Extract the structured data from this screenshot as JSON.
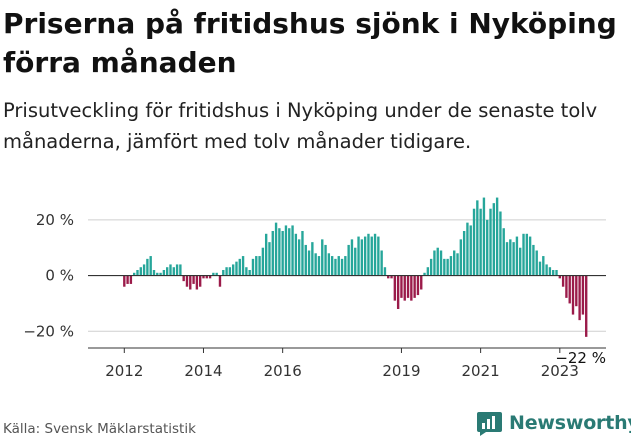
{
  "title": "Priserna på fritidshus sjönk i Nyköping förra månaden",
  "subtitle": "Prisutveckling för fritidshus i Nyköping under de senaste tolv månaderna, jämfört med tolv månader tidigare.",
  "source": "Källa: Svensk Mäklarstatistik",
  "brand": {
    "name": "Newsworthy",
    "icon": "newsworthy-logo-icon"
  },
  "colors": {
    "positive": "#26a69a",
    "negative": "#9b1b4a",
    "axis": "#333333",
    "grid": "#cfcfcf"
  },
  "chart_data": {
    "type": "bar",
    "title": "",
    "xlabel": "",
    "ylabel": "",
    "y_unit": "%",
    "ylim": [
      -26,
      30
    ],
    "xlim": [
      "2011-02",
      "2024-03"
    ],
    "grid": true,
    "legend": "none",
    "y_ticks": [
      {
        "value": 20,
        "label": "20 %"
      },
      {
        "value": 0,
        "label": "0 %"
      },
      {
        "value": -20,
        "label": "−20 %"
      }
    ],
    "x_ticks": [
      {
        "value": "2012-01",
        "label": "2012"
      },
      {
        "value": "2014-01",
        "label": "2014"
      },
      {
        "value": "2016-01",
        "label": "2016"
      },
      {
        "value": "2019-01",
        "label": "2019"
      },
      {
        "value": "2021-01",
        "label": "2021"
      },
      {
        "value": "2023-01",
        "label": "2023"
      }
    ],
    "annotation": {
      "x": "2023-09",
      "label": "−22 %"
    },
    "series": [
      {
        "values": [
          {
            "x": "2012-01",
            "y": -4
          },
          {
            "x": "2012-02",
            "y": -3
          },
          {
            "x": "2012-03",
            "y": -3
          },
          {
            "x": "2012-04",
            "y": 1
          },
          {
            "x": "2012-05",
            "y": 2
          },
          {
            "x": "2012-06",
            "y": 3
          },
          {
            "x": "2012-07",
            "y": 4
          },
          {
            "x": "2012-08",
            "y": 6
          },
          {
            "x": "2012-09",
            "y": 7
          },
          {
            "x": "2012-10",
            "y": 2
          },
          {
            "x": "2012-11",
            "y": 1
          },
          {
            "x": "2012-12",
            "y": 1
          },
          {
            "x": "2013-01",
            "y": 2
          },
          {
            "x": "2013-02",
            "y": 3
          },
          {
            "x": "2013-03",
            "y": 4
          },
          {
            "x": "2013-04",
            "y": 3
          },
          {
            "x": "2013-05",
            "y": 4
          },
          {
            "x": "2013-06",
            "y": 4
          },
          {
            "x": "2013-07",
            "y": -2
          },
          {
            "x": "2013-08",
            "y": -4
          },
          {
            "x": "2013-09",
            "y": -5
          },
          {
            "x": "2013-10",
            "y": -3
          },
          {
            "x": "2013-11",
            "y": -5
          },
          {
            "x": "2013-12",
            "y": -4
          },
          {
            "x": "2014-01",
            "y": -1
          },
          {
            "x": "2014-02",
            "y": -1
          },
          {
            "x": "2014-03",
            "y": -1
          },
          {
            "x": "2014-04",
            "y": 1
          },
          {
            "x": "2014-05",
            "y": 1
          },
          {
            "x": "2014-06",
            "y": -4
          },
          {
            "x": "2014-07",
            "y": 2
          },
          {
            "x": "2014-08",
            "y": 3
          },
          {
            "x": "2014-09",
            "y": 3
          },
          {
            "x": "2014-10",
            "y": 4
          },
          {
            "x": "2014-11",
            "y": 5
          },
          {
            "x": "2014-12",
            "y": 6
          },
          {
            "x": "2015-01",
            "y": 7
          },
          {
            "x": "2015-02",
            "y": 3
          },
          {
            "x": "2015-03",
            "y": 2
          },
          {
            "x": "2015-04",
            "y": 6
          },
          {
            "x": "2015-05",
            "y": 7
          },
          {
            "x": "2015-06",
            "y": 7
          },
          {
            "x": "2015-07",
            "y": 10
          },
          {
            "x": "2015-08",
            "y": 15
          },
          {
            "x": "2015-09",
            "y": 12
          },
          {
            "x": "2015-10",
            "y": 16
          },
          {
            "x": "2015-11",
            "y": 19
          },
          {
            "x": "2015-12",
            "y": 17
          },
          {
            "x": "2016-01",
            "y": 16
          },
          {
            "x": "2016-02",
            "y": 18
          },
          {
            "x": "2016-03",
            "y": 17
          },
          {
            "x": "2016-04",
            "y": 18
          },
          {
            "x": "2016-05",
            "y": 15
          },
          {
            "x": "2016-06",
            "y": 13
          },
          {
            "x": "2016-07",
            "y": 16
          },
          {
            "x": "2016-08",
            "y": 11
          },
          {
            "x": "2016-09",
            "y": 9
          },
          {
            "x": "2016-10",
            "y": 12
          },
          {
            "x": "2016-11",
            "y": 8
          },
          {
            "x": "2016-12",
            "y": 7
          },
          {
            "x": "2017-01",
            "y": 13
          },
          {
            "x": "2017-02",
            "y": 11
          },
          {
            "x": "2017-03",
            "y": 8
          },
          {
            "x": "2017-04",
            "y": 7
          },
          {
            "x": "2017-05",
            "y": 6
          },
          {
            "x": "2017-06",
            "y": 7
          },
          {
            "x": "2017-07",
            "y": 6
          },
          {
            "x": "2017-08",
            "y": 7
          },
          {
            "x": "2017-09",
            "y": 11
          },
          {
            "x": "2017-10",
            "y": 13
          },
          {
            "x": "2017-11",
            "y": 10
          },
          {
            "x": "2017-12",
            "y": 14
          },
          {
            "x": "2018-01",
            "y": 13
          },
          {
            "x": "2018-02",
            "y": 14
          },
          {
            "x": "2018-03",
            "y": 15
          },
          {
            "x": "2018-04",
            "y": 14
          },
          {
            "x": "2018-05",
            "y": 15
          },
          {
            "x": "2018-06",
            "y": 14
          },
          {
            "x": "2018-07",
            "y": 9
          },
          {
            "x": "2018-08",
            "y": 3
          },
          {
            "x": "2018-09",
            "y": -1
          },
          {
            "x": "2018-10",
            "y": -1
          },
          {
            "x": "2018-11",
            "y": -9
          },
          {
            "x": "2018-12",
            "y": -12
          },
          {
            "x": "2019-01",
            "y": -8
          },
          {
            "x": "2019-02",
            "y": -9
          },
          {
            "x": "2019-03",
            "y": -8
          },
          {
            "x": "2019-04",
            "y": -9
          },
          {
            "x": "2019-05",
            "y": -8
          },
          {
            "x": "2019-06",
            "y": -7
          },
          {
            "x": "2019-07",
            "y": -5
          },
          {
            "x": "2019-08",
            "y": 1
          },
          {
            "x": "2019-09",
            "y": 3
          },
          {
            "x": "2019-10",
            "y": 6
          },
          {
            "x": "2019-11",
            "y": 9
          },
          {
            "x": "2019-12",
            "y": 10
          },
          {
            "x": "2020-01",
            "y": 9
          },
          {
            "x": "2020-02",
            "y": 6
          },
          {
            "x": "2020-03",
            "y": 6
          },
          {
            "x": "2020-04",
            "y": 7
          },
          {
            "x": "2020-05",
            "y": 9
          },
          {
            "x": "2020-06",
            "y": 8
          },
          {
            "x": "2020-07",
            "y": 13
          },
          {
            "x": "2020-08",
            "y": 16
          },
          {
            "x": "2020-09",
            "y": 19
          },
          {
            "x": "2020-10",
            "y": 18
          },
          {
            "x": "2020-11",
            "y": 24
          },
          {
            "x": "2020-12",
            "y": 27
          },
          {
            "x": "2021-01",
            "y": 24
          },
          {
            "x": "2021-02",
            "y": 28
          },
          {
            "x": "2021-03",
            "y": 20
          },
          {
            "x": "2021-04",
            "y": 24
          },
          {
            "x": "2021-05",
            "y": 26
          },
          {
            "x": "2021-06",
            "y": 28
          },
          {
            "x": "2021-07",
            "y": 23
          },
          {
            "x": "2021-08",
            "y": 17
          },
          {
            "x": "2021-09",
            "y": 12
          },
          {
            "x": "2021-10",
            "y": 13
          },
          {
            "x": "2021-11",
            "y": 12
          },
          {
            "x": "2021-12",
            "y": 14
          },
          {
            "x": "2022-01",
            "y": 10
          },
          {
            "x": "2022-02",
            "y": 15
          },
          {
            "x": "2022-03",
            "y": 15
          },
          {
            "x": "2022-04",
            "y": 14
          },
          {
            "x": "2022-05",
            "y": 11
          },
          {
            "x": "2022-06",
            "y": 9
          },
          {
            "x": "2022-07",
            "y": 5
          },
          {
            "x": "2022-08",
            "y": 7
          },
          {
            "x": "2022-09",
            "y": 4
          },
          {
            "x": "2022-10",
            "y": 3
          },
          {
            "x": "2022-11",
            "y": 2
          },
          {
            "x": "2022-12",
            "y": 2
          },
          {
            "x": "2023-01",
            "y": -1
          },
          {
            "x": "2023-02",
            "y": -4
          },
          {
            "x": "2023-03",
            "y": -8
          },
          {
            "x": "2023-04",
            "y": -10
          },
          {
            "x": "2023-05",
            "y": -14
          },
          {
            "x": "2023-06",
            "y": -11
          },
          {
            "x": "2023-07",
            "y": -16
          },
          {
            "x": "2023-08",
            "y": -14
          },
          {
            "x": "2023-09",
            "y": -22
          }
        ]
      }
    ]
  }
}
